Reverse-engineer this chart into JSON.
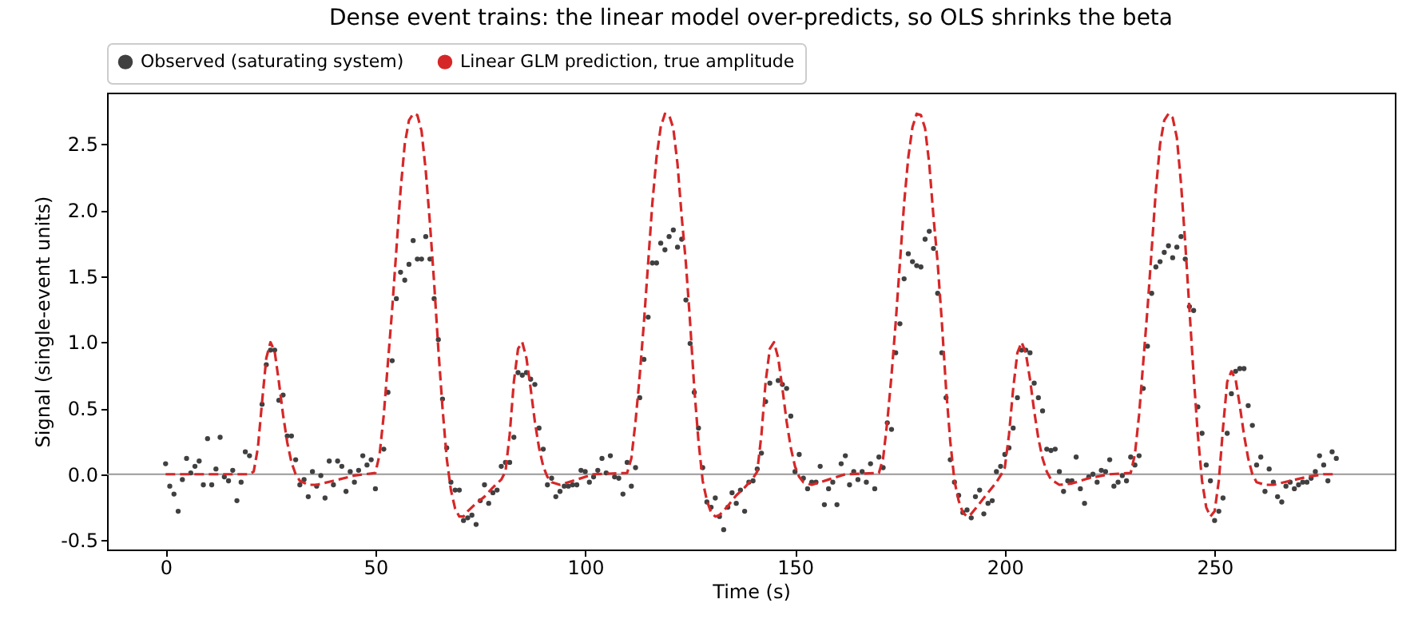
{
  "chart_data": {
    "type": "scatter",
    "title": "Dense event trains: the linear model over-predicts, so OLS shrinks the beta",
    "xlabel": "Time (s)",
    "ylabel": "Signal (single-event units)",
    "xlim": [
      -13.95,
      292.95
    ],
    "xticks": [
      0,
      50,
      100,
      150,
      200,
      250
    ],
    "ylim": [
      -0.57,
      2.89
    ],
    "yticks": [
      -0.5,
      {
        "value": 0,
        "label": "0.0"
      },
      0.5,
      {
        "value": 1,
        "label": "1.0"
      },
      1.5,
      {
        "value": 2,
        "label": "2.0"
      },
      2.5
    ],
    "grid": false,
    "legend": "top",
    "ref_lines": [
      {
        "axis": "y",
        "value": 0,
        "color": "#999999"
      }
    ],
    "series": [
      {
        "name": "Observed (saturating system)",
        "marker": "circle",
        "color": "#404040",
        "x": [
          0,
          1,
          2,
          3,
          4,
          5,
          6,
          7,
          8,
          9,
          10,
          11,
          12,
          13,
          14,
          15,
          16,
          17,
          18,
          19,
          20,
          23,
          24,
          25,
          26,
          27,
          28,
          29,
          30,
          31,
          32,
          33,
          34,
          35,
          36,
          37,
          38,
          39,
          40,
          41,
          42,
          43,
          44,
          45,
          46,
          47,
          48,
          49,
          50,
          52,
          53,
          54,
          55,
          56,
          57,
          58,
          59,
          60,
          61,
          62,
          63,
          64,
          65,
          66,
          67,
          68,
          69,
          70,
          71,
          72,
          73,
          74,
          75,
          76,
          77,
          78,
          79,
          80,
          81,
          82,
          83,
          84,
          85,
          86,
          87,
          88,
          89,
          90,
          91,
          92,
          93,
          94,
          95,
          96,
          97,
          98,
          99,
          100,
          101,
          102,
          103,
          104,
          105,
          106,
          107,
          108,
          109,
          110,
          111,
          112,
          113,
          114,
          115,
          116,
          117,
          118,
          119,
          120,
          121,
          122,
          123,
          124,
          125,
          126,
          127,
          128,
          129,
          130,
          131,
          132,
          133,
          134,
          135,
          136,
          137,
          138,
          139,
          140,
          141,
          142,
          143,
          144,
          146,
          147,
          148,
          149,
          150,
          151,
          152,
          153,
          154,
          155,
          156,
          157,
          158,
          159,
          160,
          161,
          162,
          163,
          164,
          165,
          166,
          167,
          168,
          169,
          170,
          171,
          172,
          173,
          174,
          175,
          176,
          177,
          178,
          179,
          180,
          181,
          182,
          183,
          184,
          185,
          186,
          187,
          188,
          189,
          190,
          191,
          192,
          193,
          194,
          195,
          196,
          197,
          198,
          199,
          200,
          201,
          202,
          203,
          204,
          205,
          206,
          207,
          208,
          209,
          210,
          211,
          212,
          213,
          214,
          215,
          216,
          217,
          218,
          219,
          220,
          221,
          222,
          223,
          224,
          225,
          226,
          227,
          228,
          229,
          230,
          231,
          232,
          233,
          234,
          235,
          236,
          237,
          238,
          239,
          240,
          241,
          242,
          243,
          244,
          245,
          246,
          247,
          248,
          249,
          250,
          251,
          252,
          253,
          254,
          255,
          256,
          257,
          258,
          259,
          260,
          261,
          262,
          263,
          264,
          265,
          266,
          267,
          268,
          269,
          270,
          271,
          272,
          273,
          274,
          275,
          276,
          277,
          278,
          279
        ],
        "values": [
          0.08,
          -0.09,
          -0.15,
          -0.28,
          -0.04,
          0.12,
          0.01,
          0.06,
          0.1,
          -0.08,
          0.27,
          -0.08,
          0.04,
          0.28,
          -0.02,
          -0.05,
          0.03,
          -0.2,
          -0.06,
          0.17,
          0.14,
          0.53,
          0.83,
          0.94,
          0.94,
          0.56,
          0.6,
          0.29,
          0.29,
          0.11,
          -0.08,
          -0.04,
          -0.17,
          0.02,
          -0.09,
          -0.01,
          -0.18,
          0.1,
          -0.08,
          0.1,
          0.06,
          -0.13,
          0.02,
          -0.06,
          0.03,
          0.14,
          0.07,
          0.11,
          -0.11,
          0.19,
          0.62,
          0.86,
          1.33,
          1.53,
          1.47,
          1.59,
          1.77,
          1.63,
          1.63,
          1.8,
          1.63,
          1.33,
          1.02,
          0.57,
          0.2,
          -0.06,
          -0.12,
          -0.12,
          -0.35,
          -0.33,
          -0.31,
          -0.38,
          -0.2,
          -0.08,
          -0.22,
          -0.14,
          -0.12,
          0.06,
          0.09,
          0.09,
          0.28,
          0.77,
          0.75,
          0.77,
          0.72,
          0.68,
          0.35,
          0.19,
          -0.08,
          -0.03,
          -0.17,
          -0.13,
          -0.09,
          -0.09,
          -0.08,
          -0.08,
          0.03,
          0.02,
          -0.06,
          -0.02,
          0.03,
          0.12,
          0.01,
          0.14,
          -0.02,
          -0.03,
          -0.15,
          0.09,
          -0.09,
          0.05,
          0.58,
          0.87,
          1.19,
          1.6,
          1.6,
          1.75,
          1.7,
          1.8,
          1.85,
          1.72,
          1.78,
          1.32,
          0.99,
          0.62,
          0.35,
          0.05,
          -0.21,
          -0.25,
          -0.18,
          -0.32,
          -0.42,
          -0.25,
          -0.14,
          -0.22,
          -0.12,
          -0.28,
          -0.06,
          -0.05,
          0.04,
          0.16,
          0.55,
          0.69,
          0.71,
          0.68,
          0.65,
          0.44,
          0.02,
          0.15,
          -0.03,
          -0.11,
          -0.06,
          -0.06,
          0.06,
          -0.23,
          -0.11,
          -0.06,
          -0.23,
          0.08,
          0.14,
          -0.08,
          0.02,
          -0.04,
          0.02,
          -0.06,
          0.08,
          -0.11,
          0.13,
          0.05,
          0.39,
          0.34,
          0.92,
          1.14,
          1.48,
          1.67,
          1.61,
          1.58,
          1.57,
          1.78,
          1.84,
          1.71,
          1.37,
          0.92,
          0.58,
          0.11,
          -0.06,
          -0.16,
          -0.29,
          -0.27,
          -0.33,
          -0.17,
          -0.12,
          -0.3,
          -0.22,
          -0.2,
          0.02,
          0.06,
          0.15,
          0.2,
          0.35,
          0.58,
          0.94,
          0.94,
          0.92,
          0.69,
          0.58,
          0.48,
          0.19,
          0.18,
          0.19,
          0.02,
          -0.13,
          -0.05,
          -0.05,
          0.13,
          -0.11,
          -0.22,
          -0.02,
          0,
          -0.06,
          0.03,
          0.02,
          0.11,
          -0.09,
          -0.06,
          -0.01,
          -0.05,
          0.13,
          0.07,
          0.14,
          0.65,
          0.97,
          1.37,
          1.57,
          1.61,
          1.68,
          1.73,
          1.64,
          1.72,
          1.8,
          1.63,
          1.27,
          1.24,
          0.51,
          0.31,
          0.07,
          -0.05,
          -0.35,
          -0.28,
          -0.18,
          0.31,
          0.61,
          0.78,
          0.8,
          0.8,
          0.52,
          0.37,
          0.07,
          0.13,
          -0.13,
          0.04,
          -0.06,
          -0.17,
          -0.21,
          -0.09,
          -0.06,
          -0.11,
          -0.08,
          -0.06,
          -0.06,
          -0.03,
          0.02,
          0.14,
          0.07,
          -0.05,
          0.17,
          0.12
        ]
      },
      {
        "name": "Linear GLM prediction, true amplitude",
        "type": "line",
        "line_style": "dashed",
        "marker": "none",
        "color": "#d62728",
        "x": [
          0,
          20,
          21,
          22,
          23,
          24,
          25,
          26,
          27,
          28,
          29,
          30,
          31,
          32,
          34,
          36,
          40,
          45,
          50,
          51,
          52,
          53,
          54,
          55,
          56,
          57,
          58,
          59,
          60,
          61,
          62,
          63,
          64,
          65,
          66,
          67,
          68,
          69,
          70,
          71,
          72,
          74,
          76,
          78,
          80,
          81,
          82,
          83,
          84,
          85,
          86,
          87,
          88,
          89,
          90,
          91,
          92,
          94,
          98,
          102,
          110,
          111,
          112,
          113,
          114,
          115,
          116,
          117,
          118,
          119,
          120,
          121,
          122,
          123,
          124,
          125,
          126,
          127,
          128,
          129,
          130,
          131,
          132,
          134,
          136,
          138,
          140,
          141,
          142,
          143,
          144,
          145,
          146,
          147,
          148,
          149,
          150,
          151,
          152,
          154,
          158,
          162,
          170,
          171,
          172,
          173,
          174,
          175,
          176,
          177,
          178,
          179,
          180,
          181,
          182,
          183,
          184,
          185,
          186,
          187,
          188,
          189,
          190,
          191,
          192,
          194,
          196,
          198,
          199,
          200,
          201,
          202,
          203,
          204,
          205,
          206,
          207,
          208,
          209,
          210,
          211,
          213,
          216,
          220,
          225,
          230,
          231,
          232,
          233,
          234,
          235,
          236,
          237,
          238,
          239,
          240,
          241,
          242,
          243,
          244,
          245,
          246,
          247,
          248,
          249,
          250,
          251,
          252,
          253,
          254,
          255,
          256,
          257,
          258,
          259,
          260,
          262,
          264,
          268,
          272,
          276,
          279
        ],
        "values": [
          0,
          0,
          0.02,
          0.2,
          0.55,
          0.88,
          1.0,
          0.93,
          0.7,
          0.45,
          0.24,
          0.09,
          0,
          -0.05,
          -0.08,
          -0.08,
          -0.05,
          -0.01,
          0.01,
          0.15,
          0.45,
          0.85,
          1.25,
          1.7,
          2.15,
          2.5,
          2.68,
          2.73,
          2.72,
          2.6,
          2.3,
          1.9,
          1.45,
          0.95,
          0.5,
          0.12,
          -0.12,
          -0.26,
          -0.32,
          -0.32,
          -0.28,
          -0.22,
          -0.17,
          -0.1,
          -0.04,
          0.02,
          0.3,
          0.7,
          0.95,
          1.0,
          0.88,
          0.65,
          0.4,
          0.2,
          0.06,
          -0.02,
          -0.06,
          -0.08,
          -0.04,
          0,
          0.01,
          0.12,
          0.4,
          0.75,
          1.15,
          1.6,
          2.05,
          2.4,
          2.63,
          2.73,
          2.72,
          2.62,
          2.35,
          1.95,
          1.6,
          1.15,
          0.65,
          0.25,
          -0.05,
          -0.2,
          -0.29,
          -0.32,
          -0.31,
          -0.24,
          -0.16,
          -0.1,
          -0.03,
          0.02,
          0.3,
          0.7,
          0.95,
          1.0,
          0.88,
          0.65,
          0.4,
          0.2,
          0.06,
          -0.02,
          -0.06,
          -0.08,
          -0.04,
          0,
          0.01,
          0.12,
          0.4,
          0.75,
          1.15,
          1.6,
          2.05,
          2.4,
          2.63,
          2.73,
          2.72,
          2.62,
          2.35,
          1.95,
          1.6,
          1.15,
          0.65,
          0.25,
          -0.05,
          -0.2,
          -0.29,
          -0.32,
          -0.3,
          -0.22,
          -0.14,
          -0.06,
          -0.01,
          0.05,
          0.3,
          0.65,
          0.92,
          1.0,
          0.92,
          0.72,
          0.48,
          0.27,
          0.12,
          0.02,
          -0.04,
          -0.08,
          -0.07,
          -0.03,
          0,
          0.01,
          0.15,
          0.45,
          0.85,
          1.25,
          1.7,
          2.15,
          2.5,
          2.68,
          2.73,
          2.7,
          2.55,
          2.2,
          1.75,
          1.25,
          0.75,
          0.3,
          -0.05,
          -0.25,
          -0.32,
          -0.28,
          -0.05,
          0.35,
          0.7,
          0.78,
          0.72,
          0.52,
          0.3,
          0.12,
          0,
          -0.06,
          -0.08,
          -0.08,
          -0.05,
          -0.02,
          0,
          0
        ]
      }
    ]
  }
}
